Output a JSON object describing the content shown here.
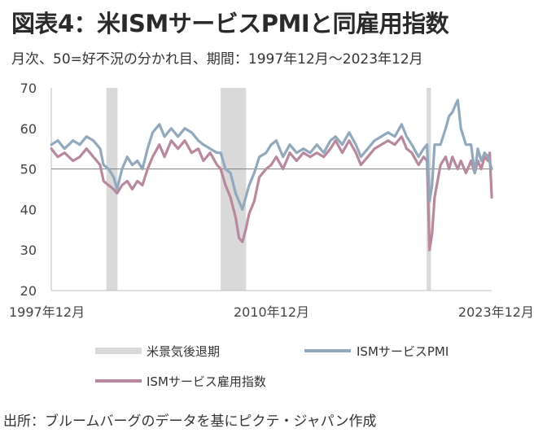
{
  "header": {
    "title": "図表4：米ISMサービスPMIと同雇用指数",
    "subtitle": "月次、50=好不況の分かれ目、期間：1997年12月～2023年12月"
  },
  "source": "出所：ブルームバーグのデータを基にピクテ・ジャパン作成",
  "chart_data": {
    "type": "line",
    "x_tick_labels": [
      "1997年12月",
      "2010年12月",
      "2023年12月"
    ],
    "x_ticks": [
      1997.917,
      2010.917,
      2023.917
    ],
    "xlim": [
      1997.917,
      2023.917
    ],
    "ylim": [
      20,
      70
    ],
    "y_ticks": [
      20,
      30,
      40,
      50,
      60,
      70
    ],
    "reference_line": 50,
    "recessions": [
      {
        "start": 2001.17,
        "end": 2001.83
      },
      {
        "start": 2007.92,
        "end": 2009.42
      },
      {
        "start": 2020.08,
        "end": 2020.33
      }
    ],
    "legend": {
      "recession": "米景気後退期",
      "series": [
        "ISMサービスPMI",
        "ISMサービス雇用指数"
      ]
    },
    "colors": {
      "pmi": "#92a8bd",
      "employment": "#b8899e",
      "recession": "#d9d9d9",
      "axis": "#bfbfbf",
      "reference": "#7f7f7f"
    },
    "series": [
      {
        "name": "ISMサービスPMI",
        "points": [
          [
            1997.92,
            56
          ],
          [
            1998.3,
            57
          ],
          [
            1998.7,
            55
          ],
          [
            1999.2,
            57
          ],
          [
            1999.6,
            56
          ],
          [
            2000.0,
            58
          ],
          [
            2000.4,
            57
          ],
          [
            2000.8,
            55
          ],
          [
            2001.0,
            51
          ],
          [
            2001.3,
            50
          ],
          [
            2001.6,
            48
          ],
          [
            2001.8,
            45
          ],
          [
            2002.1,
            50
          ],
          [
            2002.4,
            53
          ],
          [
            2002.7,
            51
          ],
          [
            2003.0,
            52
          ],
          [
            2003.3,
            50
          ],
          [
            2003.6,
            55
          ],
          [
            2003.9,
            59
          ],
          [
            2004.3,
            61
          ],
          [
            2004.6,
            58
          ],
          [
            2005.0,
            60
          ],
          [
            2005.4,
            58
          ],
          [
            2005.8,
            60
          ],
          [
            2006.2,
            59
          ],
          [
            2006.6,
            57
          ],
          [
            2006.9,
            56
          ],
          [
            2007.3,
            55
          ],
          [
            2007.7,
            54
          ],
          [
            2007.92,
            54
          ],
          [
            2008.2,
            50
          ],
          [
            2008.5,
            49
          ],
          [
            2008.8,
            44
          ],
          [
            2009.0,
            42
          ],
          [
            2009.2,
            40
          ],
          [
            2009.4,
            43
          ],
          [
            2009.6,
            46
          ],
          [
            2009.9,
            49
          ],
          [
            2010.2,
            53
          ],
          [
            2010.6,
            54
          ],
          [
            2010.9,
            56
          ],
          [
            2011.2,
            57
          ],
          [
            2011.6,
            53
          ],
          [
            2012.0,
            56
          ],
          [
            2012.4,
            54
          ],
          [
            2012.8,
            55
          ],
          [
            2013.2,
            54
          ],
          [
            2013.6,
            56
          ],
          [
            2014.0,
            54
          ],
          [
            2014.4,
            57
          ],
          [
            2014.7,
            58
          ],
          [
            2015.1,
            56
          ],
          [
            2015.5,
            59
          ],
          [
            2015.9,
            56
          ],
          [
            2016.2,
            53
          ],
          [
            2016.6,
            55
          ],
          [
            2017.0,
            57
          ],
          [
            2017.4,
            58
          ],
          [
            2017.8,
            59
          ],
          [
            2018.2,
            58
          ],
          [
            2018.6,
            61
          ],
          [
            2018.9,
            58
          ],
          [
            2019.2,
            56
          ],
          [
            2019.6,
            53
          ],
          [
            2019.9,
            55
          ],
          [
            2020.1,
            56
          ],
          [
            2020.25,
            42
          ],
          [
            2020.4,
            46
          ],
          [
            2020.55,
            56
          ],
          [
            2020.9,
            56
          ],
          [
            2021.2,
            60
          ],
          [
            2021.4,
            63
          ],
          [
            2021.6,
            64
          ],
          [
            2021.8,
            66
          ],
          [
            2021.92,
            67
          ],
          [
            2022.1,
            60
          ],
          [
            2022.4,
            56
          ],
          [
            2022.7,
            56
          ],
          [
            2022.92,
            49
          ],
          [
            2023.1,
            55
          ],
          [
            2023.3,
            52
          ],
          [
            2023.5,
            54
          ],
          [
            2023.7,
            53
          ],
          [
            2023.92,
            50
          ]
        ]
      },
      {
        "name": "ISMサービス雇用指数",
        "points": [
          [
            1997.92,
            55
          ],
          [
            1998.3,
            53
          ],
          [
            1998.7,
            54
          ],
          [
            1999.2,
            52
          ],
          [
            1999.6,
            53
          ],
          [
            2000.0,
            55
          ],
          [
            2000.4,
            53
          ],
          [
            2000.8,
            51
          ],
          [
            2001.0,
            47
          ],
          [
            2001.3,
            46
          ],
          [
            2001.6,
            45
          ],
          [
            2001.8,
            44
          ],
          [
            2002.1,
            46
          ],
          [
            2002.4,
            47
          ],
          [
            2002.7,
            45
          ],
          [
            2003.0,
            47
          ],
          [
            2003.3,
            46
          ],
          [
            2003.6,
            50
          ],
          [
            2003.9,
            53
          ],
          [
            2004.3,
            56
          ],
          [
            2004.6,
            53
          ],
          [
            2005.0,
            57
          ],
          [
            2005.4,
            55
          ],
          [
            2005.8,
            57
          ],
          [
            2006.2,
            54
          ],
          [
            2006.6,
            55
          ],
          [
            2006.9,
            52
          ],
          [
            2007.3,
            54
          ],
          [
            2007.7,
            51
          ],
          [
            2007.92,
            50
          ],
          [
            2008.2,
            46
          ],
          [
            2008.5,
            43
          ],
          [
            2008.8,
            38
          ],
          [
            2009.0,
            33
          ],
          [
            2009.2,
            32
          ],
          [
            2009.4,
            35
          ],
          [
            2009.6,
            39
          ],
          [
            2009.9,
            42
          ],
          [
            2010.2,
            48
          ],
          [
            2010.6,
            50
          ],
          [
            2010.9,
            51
          ],
          [
            2011.2,
            53
          ],
          [
            2011.6,
            50
          ],
          [
            2012.0,
            54
          ],
          [
            2012.4,
            52
          ],
          [
            2012.8,
            54
          ],
          [
            2013.2,
            53
          ],
          [
            2013.6,
            54
          ],
          [
            2014.0,
            53
          ],
          [
            2014.4,
            55
          ],
          [
            2014.7,
            57
          ],
          [
            2015.1,
            54
          ],
          [
            2015.5,
            57
          ],
          [
            2015.9,
            54
          ],
          [
            2016.2,
            51
          ],
          [
            2016.6,
            53
          ],
          [
            2017.0,
            55
          ],
          [
            2017.4,
            56
          ],
          [
            2017.8,
            57
          ],
          [
            2018.2,
            56
          ],
          [
            2018.6,
            58
          ],
          [
            2018.9,
            55
          ],
          [
            2019.2,
            54
          ],
          [
            2019.6,
            51
          ],
          [
            2019.9,
            53
          ],
          [
            2020.1,
            52
          ],
          [
            2020.25,
            30
          ],
          [
            2020.4,
            34
          ],
          [
            2020.55,
            43
          ],
          [
            2020.9,
            51
          ],
          [
            2021.2,
            53
          ],
          [
            2021.4,
            50
          ],
          [
            2021.6,
            53
          ],
          [
            2021.8,
            51
          ],
          [
            2021.92,
            50
          ],
          [
            2022.1,
            52
          ],
          [
            2022.4,
            49
          ],
          [
            2022.7,
            52
          ],
          [
            2022.92,
            49
          ],
          [
            2023.1,
            52
          ],
          [
            2023.3,
            50
          ],
          [
            2023.5,
            53
          ],
          [
            2023.7,
            52
          ],
          [
            2023.8,
            54
          ],
          [
            2023.92,
            43
          ]
        ]
      }
    ]
  }
}
